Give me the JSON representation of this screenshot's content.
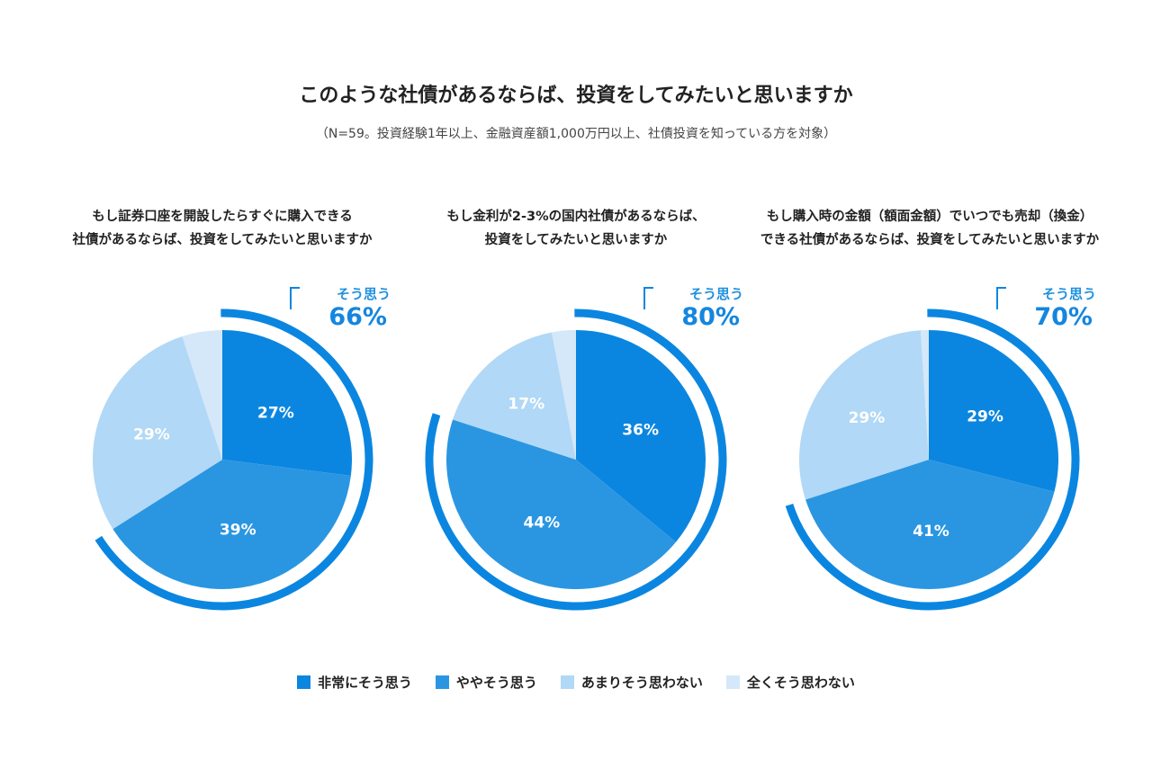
{
  "title": "このような社債があるならば、投資をしてみたいと思いますか",
  "subtitle": "（N=59。投資経験1年以上、金融資産額1,000万円以上、社債投資を知っている方を対象）",
  "legend": [
    {
      "label": "非常にそう思う",
      "color": "#0b86e0"
    },
    {
      "label": "ややそう思う",
      "color": "#2a96e2"
    },
    {
      "label": "あまりそう思わない",
      "color": "#b1d8f6"
    },
    {
      "label": "全くそう思わない",
      "color": "#d4e8f9"
    }
  ],
  "chart_data": [
    {
      "type": "pie",
      "title_line1": "もし証券口座を開設したらすぐに購入できる",
      "title_line2": "社債があるならば、投資をしてみたいと思いますか",
      "categories": [
        "非常にそう思う",
        "ややそう思う",
        "あまりそう思わない",
        "全くそう思わない"
      ],
      "values": [
        27,
        39,
        29,
        5
      ],
      "data_labels": [
        "27%",
        "39%",
        "29%",
        ""
      ],
      "agree_label": "そう思う",
      "agree_value": "66%",
      "agree_fraction": 0.66
    },
    {
      "type": "pie",
      "title_line1": "もし金利が2-3%の国内社債があるならば、",
      "title_line2": "投資をしてみたいと思いますか",
      "categories": [
        "非常にそう思う",
        "ややそう思う",
        "あまりそう思わない",
        "全くそう思わない"
      ],
      "values": [
        36,
        44,
        17,
        3
      ],
      "data_labels": [
        "36%",
        "44%",
        "17%",
        ""
      ],
      "agree_label": "そう思う",
      "agree_value": "80%",
      "agree_fraction": 0.8
    },
    {
      "type": "pie",
      "title_line1": "もし購入時の金額（額面金額）でいつでも売却（換金）",
      "title_line2": "できる社債があるならば、投資をしてみたいと思いますか",
      "categories": [
        "非常にそう思う",
        "ややそう思う",
        "あまりそう思わない",
        "全くそう思わない"
      ],
      "values": [
        29,
        41,
        29,
        1
      ],
      "data_labels": [
        "29%",
        "41%",
        "29%",
        ""
      ],
      "agree_label": "そう思う",
      "agree_value": "70%",
      "agree_fraction": 0.7
    }
  ]
}
